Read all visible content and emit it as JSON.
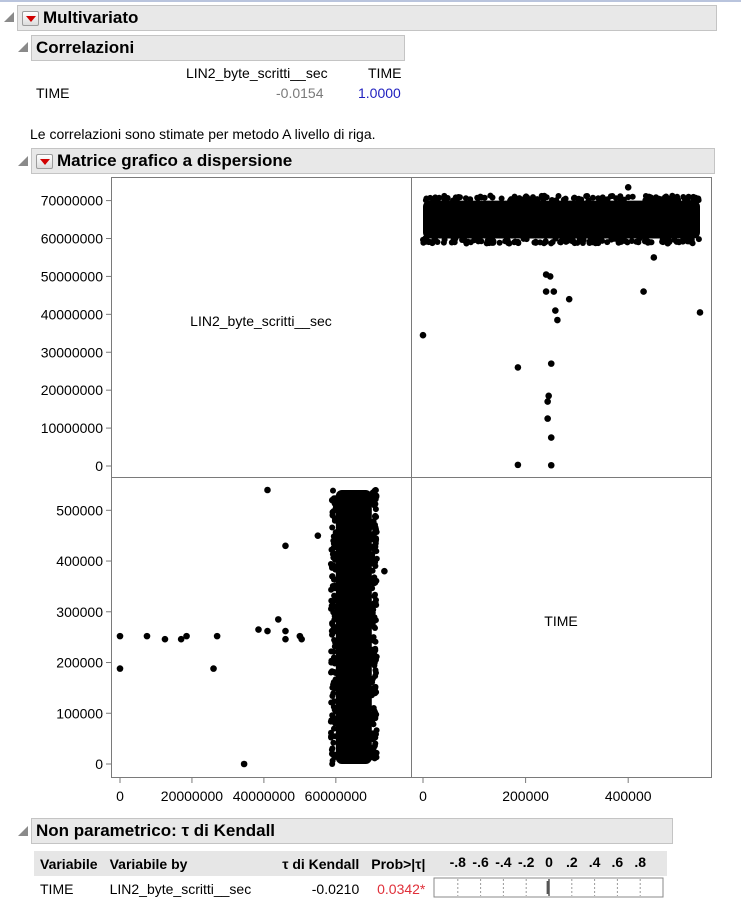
{
  "report": {
    "multivariate_title": "Multivariato",
    "correlations": {
      "title": "Correlazioni",
      "col_headers": [
        "LIN2_byte_scritti__sec",
        "TIME"
      ],
      "row_label": "TIME",
      "values": [
        "-0.0154",
        "1.0000"
      ],
      "note": "Le correlazioni sono stimate per metodo A livello di riga."
    },
    "scatter_matrix": {
      "title": "Matrice grafico a dispersione",
      "variables": [
        "LIN2_byte_scritti__sec",
        "TIME"
      ]
    },
    "nonparametric": {
      "title": "Non parametrico: τ di Kendall",
      "headers": [
        "Variabile",
        "Variabile by",
        "τ di Kendall",
        "Prob>|τ|",
        "-.8 -.6 -.4 -.2  0  .2  .4  .6  .8"
      ],
      "row": {
        "variable": "TIME",
        "by_variable": "LIN2_byte_scritti__sec",
        "tau": "-0.0210",
        "prob": "0.0342*"
      },
      "bar_scale_ticks": [
        "-.8",
        "-.6",
        "-.4",
        "-.2",
        "0",
        ".2",
        ".4",
        ".6",
        ".8"
      ],
      "tau_value": -0.021
    }
  },
  "colors": {
    "header_bg": "#e8e8e8",
    "significant_prob": "#e0303a",
    "correlation_one": "#1f1fbf",
    "correlation_neg": "#7a7a7a"
  },
  "chart_data": [
    {
      "type": "scatter",
      "panel": "upper-right",
      "x_variable": "TIME",
      "y_variable": "LIN2_byte_scritti__sec",
      "xlim": [
        0,
        540000
      ],
      "ylim": [
        0,
        72000000
      ],
      "x_ticks": [
        "0",
        "200000",
        "400000"
      ],
      "y_ticks": [
        "0",
        "10000000",
        "20000000",
        "30000000",
        "40000000",
        "50000000",
        "60000000",
        "70000000"
      ],
      "dense_band": {
        "x": [
          0,
          540000
        ],
        "y": [
          60000000,
          70000000
        ]
      },
      "points": [
        {
          "x": 0,
          "y": 34500000
        },
        {
          "x": 185000,
          "y": 26000000
        },
        {
          "x": 185000,
          "y": 300000
        },
        {
          "x": 240000,
          "y": 50500000
        },
        {
          "x": 248000,
          "y": 50000000
        },
        {
          "x": 240000,
          "y": 46000000
        },
        {
          "x": 255000,
          "y": 46000000
        },
        {
          "x": 258000,
          "y": 41000000
        },
        {
          "x": 262000,
          "y": 38500000
        },
        {
          "x": 285000,
          "y": 44000000
        },
        {
          "x": 250000,
          "y": 27000000
        },
        {
          "x": 245000,
          "y": 18500000
        },
        {
          "x": 243000,
          "y": 17000000
        },
        {
          "x": 243000,
          "y": 12500000
        },
        {
          "x": 250000,
          "y": 7500000
        },
        {
          "x": 250000,
          "y": 200000
        },
        {
          "x": 430000,
          "y": 46000000
        },
        {
          "x": 450000,
          "y": 55000000
        },
        {
          "x": 540000,
          "y": 40500000
        },
        {
          "x": 185000,
          "y": 59000000
        },
        {
          "x": 400000,
          "y": 73500000
        },
        {
          "x": 5000,
          "y": 60000000
        }
      ]
    },
    {
      "type": "scatter",
      "panel": "lower-left",
      "x_variable": "LIN2_byte_scritti__sec",
      "y_variable": "TIME",
      "xlim": [
        0,
        72000000
      ],
      "ylim": [
        0,
        540000
      ],
      "x_ticks": [
        "0",
        "20000000",
        "40000000",
        "60000000"
      ],
      "y_ticks": [
        "0",
        "100000",
        "200000",
        "300000",
        "400000",
        "500000"
      ],
      "dense_band": {
        "x": [
          60000000,
          70000000
        ],
        "y": [
          0,
          540000
        ]
      },
      "points": [
        {
          "x": 0,
          "y": 252000
        },
        {
          "x": 0,
          "y": 188000
        },
        {
          "x": 7500000,
          "y": 252000
        },
        {
          "x": 12500000,
          "y": 246000
        },
        {
          "x": 17000000,
          "y": 246000
        },
        {
          "x": 18500000,
          "y": 252000
        },
        {
          "x": 26000000,
          "y": 188000
        },
        {
          "x": 27000000,
          "y": 252000
        },
        {
          "x": 34500000,
          "y": 0
        },
        {
          "x": 38500000,
          "y": 265000
        },
        {
          "x": 41000000,
          "y": 540000
        },
        {
          "x": 41000000,
          "y": 262000
        },
        {
          "x": 44000000,
          "y": 285000
        },
        {
          "x": 46000000,
          "y": 262000
        },
        {
          "x": 46000000,
          "y": 246000
        },
        {
          "x": 46000000,
          "y": 430000
        },
        {
          "x": 50000000,
          "y": 252000
        },
        {
          "x": 50500000,
          "y": 246000
        },
        {
          "x": 55000000,
          "y": 450000
        },
        {
          "x": 73500000,
          "y": 380000
        },
        {
          "x": 59000000,
          "y": 20000
        },
        {
          "x": 59000000,
          "y": 520000
        }
      ]
    }
  ]
}
